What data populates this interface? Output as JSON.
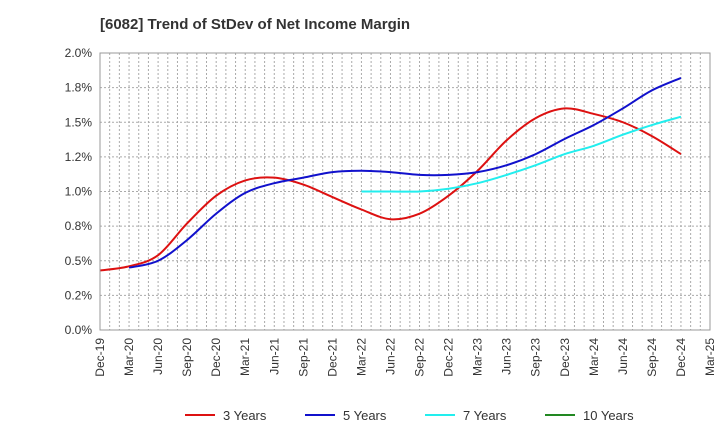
{
  "chart_data": {
    "type": "line",
    "title": "[6082]  Trend of StDev of Net Income Margin",
    "xlabel": "",
    "ylabel": "",
    "ylim": [
      0,
      2.0
    ],
    "yticks": [
      "0.0%",
      "0.2%",
      "0.5%",
      "0.8%",
      "1.0%",
      "1.2%",
      "1.5%",
      "1.8%",
      "2.0%"
    ],
    "xticks": [
      "Dec-19",
      "Mar-20",
      "Jun-20",
      "Sep-20",
      "Dec-20",
      "Mar-21",
      "Jun-21",
      "Sep-21",
      "Dec-21",
      "Mar-22",
      "Jun-22",
      "Sep-22",
      "Dec-22",
      "Mar-23",
      "Jun-23",
      "Sep-23",
      "Dec-23",
      "Mar-24",
      "Jun-24",
      "Sep-24",
      "Dec-24",
      "Mar-25"
    ],
    "grid": true,
    "legend_position": "bottom",
    "series": [
      {
        "name": "3 Years",
        "color": "#dd1111",
        "x": [
          "Dec-19",
          "Mar-20",
          "Jun-20",
          "Sep-20",
          "Dec-20",
          "Mar-21",
          "Jun-21",
          "Sep-21",
          "Dec-21",
          "Mar-22",
          "Jun-22",
          "Sep-22",
          "Dec-22",
          "Mar-23",
          "Jun-23",
          "Sep-23",
          "Dec-23",
          "Mar-24",
          "Jun-24",
          "Sep-24",
          "Dec-24"
        ],
        "values": [
          0.43,
          0.46,
          0.54,
          0.77,
          0.97,
          1.08,
          1.1,
          1.05,
          0.96,
          0.87,
          0.8,
          0.84,
          0.97,
          1.15,
          1.37,
          1.53,
          1.6,
          1.56,
          1.5,
          1.4,
          1.27
        ]
      },
      {
        "name": "5 Years",
        "color": "#1111cc",
        "x": [
          "Mar-20",
          "Jun-20",
          "Sep-20",
          "Dec-20",
          "Mar-21",
          "Jun-21",
          "Sep-21",
          "Dec-21",
          "Mar-22",
          "Jun-22",
          "Sep-22",
          "Dec-22",
          "Mar-23",
          "Jun-23",
          "Sep-23",
          "Dec-23",
          "Mar-24",
          "Jun-24",
          "Sep-24",
          "Dec-24"
        ],
        "values": [
          0.45,
          0.5,
          0.65,
          0.84,
          0.99,
          1.06,
          1.1,
          1.14,
          1.15,
          1.14,
          1.12,
          1.12,
          1.14,
          1.19,
          1.27,
          1.38,
          1.48,
          1.6,
          1.73,
          1.82
        ]
      },
      {
        "name": "7 Years",
        "color": "#22eeee",
        "x": [
          "Mar-22",
          "Jun-22",
          "Sep-22",
          "Dec-22",
          "Mar-23",
          "Jun-23",
          "Sep-23",
          "Dec-23",
          "Mar-24",
          "Jun-24",
          "Sep-24",
          "Dec-24"
        ],
        "values": [
          1.0,
          1.0,
          1.0,
          1.02,
          1.06,
          1.12,
          1.19,
          1.27,
          1.33,
          1.41,
          1.48,
          1.54
        ]
      },
      {
        "name": "10 Years",
        "color": "#228822",
        "x": [],
        "values": []
      }
    ]
  }
}
